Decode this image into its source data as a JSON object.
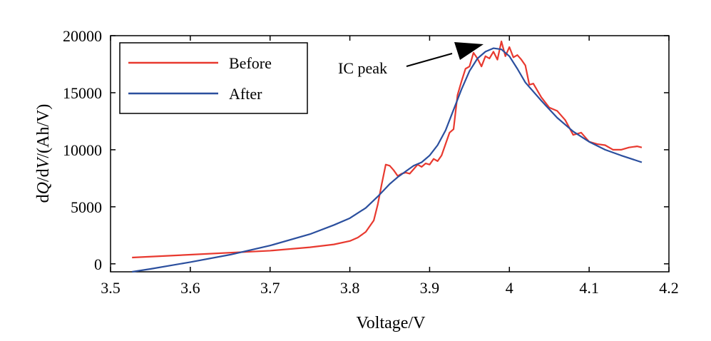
{
  "chart_data": {
    "type": "line",
    "title": "",
    "xlabel": "Voltage/V",
    "ylabel_parts": [
      "dQ/dV/(Ah/V)",
      "d",
      "Q",
      "/d",
      "V",
      "/(Ah/V)"
    ],
    "xlim": [
      3.5,
      4.2
    ],
    "ylim": [
      -700,
      20000
    ],
    "xticks": [
      3.5,
      3.6,
      3.7,
      3.8,
      3.9,
      4.0,
      4.1,
      4.2
    ],
    "xtick_labels": [
      "3.5",
      "3.6",
      "3.7",
      "3.8",
      "3.9",
      "4",
      "4.1",
      "4.2"
    ],
    "yticks": [
      0,
      5000,
      10000,
      15000,
      20000
    ],
    "ytick_labels": [
      "0",
      "5000",
      "10000",
      "15000",
      "20000"
    ],
    "legend_position": "top-left",
    "series": [
      {
        "name": "Before",
        "color": "#e8392f",
        "x": [
          3.527,
          3.6,
          3.7,
          3.75,
          3.78,
          3.8,
          3.81,
          3.82,
          3.83,
          3.835,
          3.84,
          3.845,
          3.85,
          3.855,
          3.86,
          3.865,
          3.87,
          3.875,
          3.88,
          3.885,
          3.89,
          3.895,
          3.9,
          3.905,
          3.91,
          3.915,
          3.92,
          3.925,
          3.93,
          3.935,
          3.94,
          3.945,
          3.95,
          3.955,
          3.96,
          3.965,
          3.97,
          3.975,
          3.98,
          3.985,
          3.99,
          3.995,
          4.0,
          4.005,
          4.01,
          4.015,
          4.02,
          4.025,
          4.03,
          4.04,
          4.05,
          4.06,
          4.07,
          4.08,
          4.09,
          4.1,
          4.11,
          4.12,
          4.13,
          4.14,
          4.15,
          4.16,
          4.166
        ],
        "y": [
          550,
          800,
          1150,
          1450,
          1700,
          2000,
          2300,
          2800,
          3800,
          5200,
          7000,
          8700,
          8600,
          8200,
          7700,
          7900,
          8000,
          7900,
          8300,
          8700,
          8500,
          8800,
          8700,
          9200,
          9000,
          9500,
          10500,
          11500,
          11800,
          14800,
          16000,
          17100,
          17300,
          18500,
          18000,
          17300,
          18200,
          18000,
          18600,
          17900,
          19500,
          18200,
          19000,
          18100,
          18300,
          17900,
          17400,
          15700,
          15800,
          14600,
          13700,
          13400,
          12600,
          11300,
          11500,
          10700,
          10500,
          10400,
          10000,
          10000,
          10200,
          10300,
          10200
        ]
      },
      {
        "name": "After",
        "color": "#2b4f9e",
        "x": [
          3.527,
          3.55,
          3.6,
          3.65,
          3.7,
          3.75,
          3.78,
          3.8,
          3.82,
          3.835,
          3.85,
          3.86,
          3.87,
          3.88,
          3.89,
          3.9,
          3.91,
          3.92,
          3.93,
          3.94,
          3.95,
          3.96,
          3.97,
          3.98,
          3.99,
          4.0,
          4.01,
          4.02,
          4.04,
          4.06,
          4.08,
          4.1,
          4.12,
          4.14,
          4.166
        ],
        "y": [
          -700,
          -450,
          150,
          800,
          1600,
          2600,
          3400,
          4000,
          4900,
          5900,
          7000,
          7600,
          8100,
          8600,
          8900,
          9500,
          10400,
          11700,
          13500,
          15300,
          16900,
          18000,
          18600,
          18900,
          18800,
          18200,
          17100,
          15900,
          14300,
          12800,
          11600,
          10700,
          10000,
          9500,
          8900
        ]
      }
    ],
    "annotations": [
      {
        "text": "IC peak",
        "target_x": 3.983,
        "target_y": 18600
      }
    ]
  }
}
